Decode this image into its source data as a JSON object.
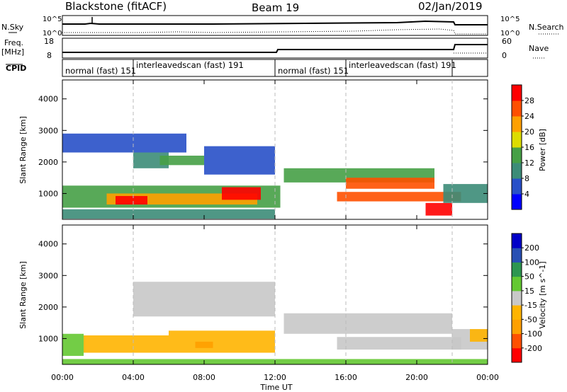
{
  "header": {
    "station": "Blackstone (fitACF)",
    "beam": "Beam 19",
    "date": "02/Jan/2019"
  },
  "noise_panel": {
    "left_label": "N.Sky",
    "left_ticks": [
      "10^5",
      "10^0"
    ],
    "right_label": "N.Search",
    "right_ticks": [
      "10^5",
      "10^0"
    ]
  },
  "freq_panel": {
    "left_label_1": "Freq.",
    "left_label_2": "[MHz]",
    "left_ticks": [
      "18",
      "8"
    ],
    "right_label": "Nave",
    "right_ticks": [
      "60",
      "0"
    ]
  },
  "cpid_panel": {
    "label": "CPID",
    "segments": [
      {
        "label": "normal (fast) 151",
        "start_hour": 0,
        "end_hour": 4
      },
      {
        "label": "interleavedscan (fast) 191",
        "start_hour": 4,
        "end_hour": 12
      },
      {
        "label": "normal (fast) 151",
        "start_hour": 12,
        "end_hour": 16
      },
      {
        "label": "interleavedscan (fast) 191",
        "start_hour": 16,
        "end_hour": 22
      }
    ]
  },
  "x_axis": {
    "label": "Time UT",
    "ticks": [
      "00:00",
      "04:00",
      "08:00",
      "12:00",
      "16:00",
      "20:00",
      "00:00"
    ]
  },
  "power_colorbar": {
    "label": "Power [dB]",
    "ticks": [
      "28",
      "24",
      "20",
      "16",
      "12",
      "8",
      "4"
    ],
    "colors": [
      "#0000ff",
      "#2850c8",
      "#3c8c78",
      "#46a046",
      "#dcdc00",
      "#ffa000",
      "#ff5000",
      "#ff0000"
    ]
  },
  "velocity_colorbar": {
    "label": "Velocity [m s^-1]",
    "ticks": [
      "200",
      "100",
      "50",
      "15",
      "-15",
      "-50",
      "-100",
      "-200"
    ],
    "colors": [
      "#ff0000",
      "#ff5000",
      "#ffa000",
      "#ffb400",
      "#c8c8c8",
      "#64c832",
      "#2d9650",
      "#2850b4",
      "#0000c8"
    ]
  },
  "chart_data": [
    {
      "type": "heatmap",
      "name": "Power",
      "ylabel": "Slant Range [km]",
      "y_ticks": [
        "1000",
        "2000",
        "3000",
        "4000"
      ],
      "xlim_hours": [
        0,
        24
      ],
      "ylim_km": [
        180,
        4600
      ],
      "colorbar_range_db": [
        0,
        32
      ],
      "regions": [
        {
          "t0": 0,
          "t1": 12.3,
          "r0": 550,
          "r1": 1250,
          "db": 12
        },
        {
          "t0": 2.5,
          "t1": 11,
          "r0": 650,
          "r1": 1000,
          "db": 22
        },
        {
          "t0": 3,
          "t1": 4.8,
          "r0": 650,
          "r1": 920,
          "db": 30
        },
        {
          "t0": 9,
          "t1": 11.2,
          "r0": 800,
          "r1": 1200,
          "db": 28
        },
        {
          "t0": 4,
          "t1": 6,
          "r0": 1800,
          "r1": 2300,
          "db": 11
        },
        {
          "t0": 5.5,
          "t1": 8,
          "r0": 1900,
          "r1": 2200,
          "db": 12
        },
        {
          "t0": 0,
          "t1": 7,
          "r0": 2300,
          "r1": 2900,
          "db": 6
        },
        {
          "t0": 8,
          "t1": 12,
          "r0": 1600,
          "r1": 2500,
          "db": 5
        },
        {
          "t0": 12.5,
          "t1": 21,
          "r0": 1350,
          "r1": 1800,
          "db": 14
        },
        {
          "t0": 16,
          "t1": 21,
          "r0": 1150,
          "r1": 1500,
          "db": 26
        },
        {
          "t0": 15.5,
          "t1": 22.5,
          "r0": 750,
          "r1": 1050,
          "db": 24
        },
        {
          "t0": 20.5,
          "t1": 22,
          "r0": 300,
          "r1": 700,
          "db": 30
        },
        {
          "t0": 21.5,
          "t1": 24,
          "r0": 700,
          "r1": 1300,
          "db": 10
        },
        {
          "t0": 0,
          "t1": 12,
          "r0": 200,
          "r1": 500,
          "db": 8
        }
      ]
    },
    {
      "type": "heatmap",
      "name": "Velocity",
      "ylabel": "Slant Range [km]",
      "y_ticks": [
        "1000",
        "2000",
        "3000",
        "4000"
      ],
      "xlim_hours": [
        0,
        24
      ],
      "ylim_km": [
        180,
        4600
      ],
      "colorbar_range_ms": [
        -250,
        250
      ],
      "regions": [
        {
          "t0": 0,
          "t1": 1.2,
          "r0": 450,
          "r1": 1150,
          "v": 30
        },
        {
          "t0": 1.2,
          "t1": 6,
          "r0": 550,
          "r1": 1100,
          "v": -40
        },
        {
          "t0": 6,
          "t1": 12,
          "r0": 550,
          "r1": 1250,
          "v": -30
        },
        {
          "t0": 7.5,
          "t1": 8.5,
          "r0": 700,
          "r1": 900,
          "v": -80
        },
        {
          "t0": 4,
          "t1": 12,
          "r0": 1700,
          "r1": 2800,
          "v": 0
        },
        {
          "t0": 12.5,
          "t1": 22,
          "r0": 1150,
          "r1": 1800,
          "v": 0
        },
        {
          "t0": 15.5,
          "t1": 22.5,
          "r0": 650,
          "r1": 1050,
          "v": 0
        },
        {
          "t0": 22,
          "t1": 24,
          "r0": 650,
          "r1": 1300,
          "v": 0
        },
        {
          "t0": 23,
          "t1": 24,
          "r0": 900,
          "r1": 1300,
          "v": -40
        },
        {
          "t0": 0,
          "t1": 24,
          "r0": 180,
          "r1": 350,
          "v": 25
        }
      ]
    }
  ]
}
